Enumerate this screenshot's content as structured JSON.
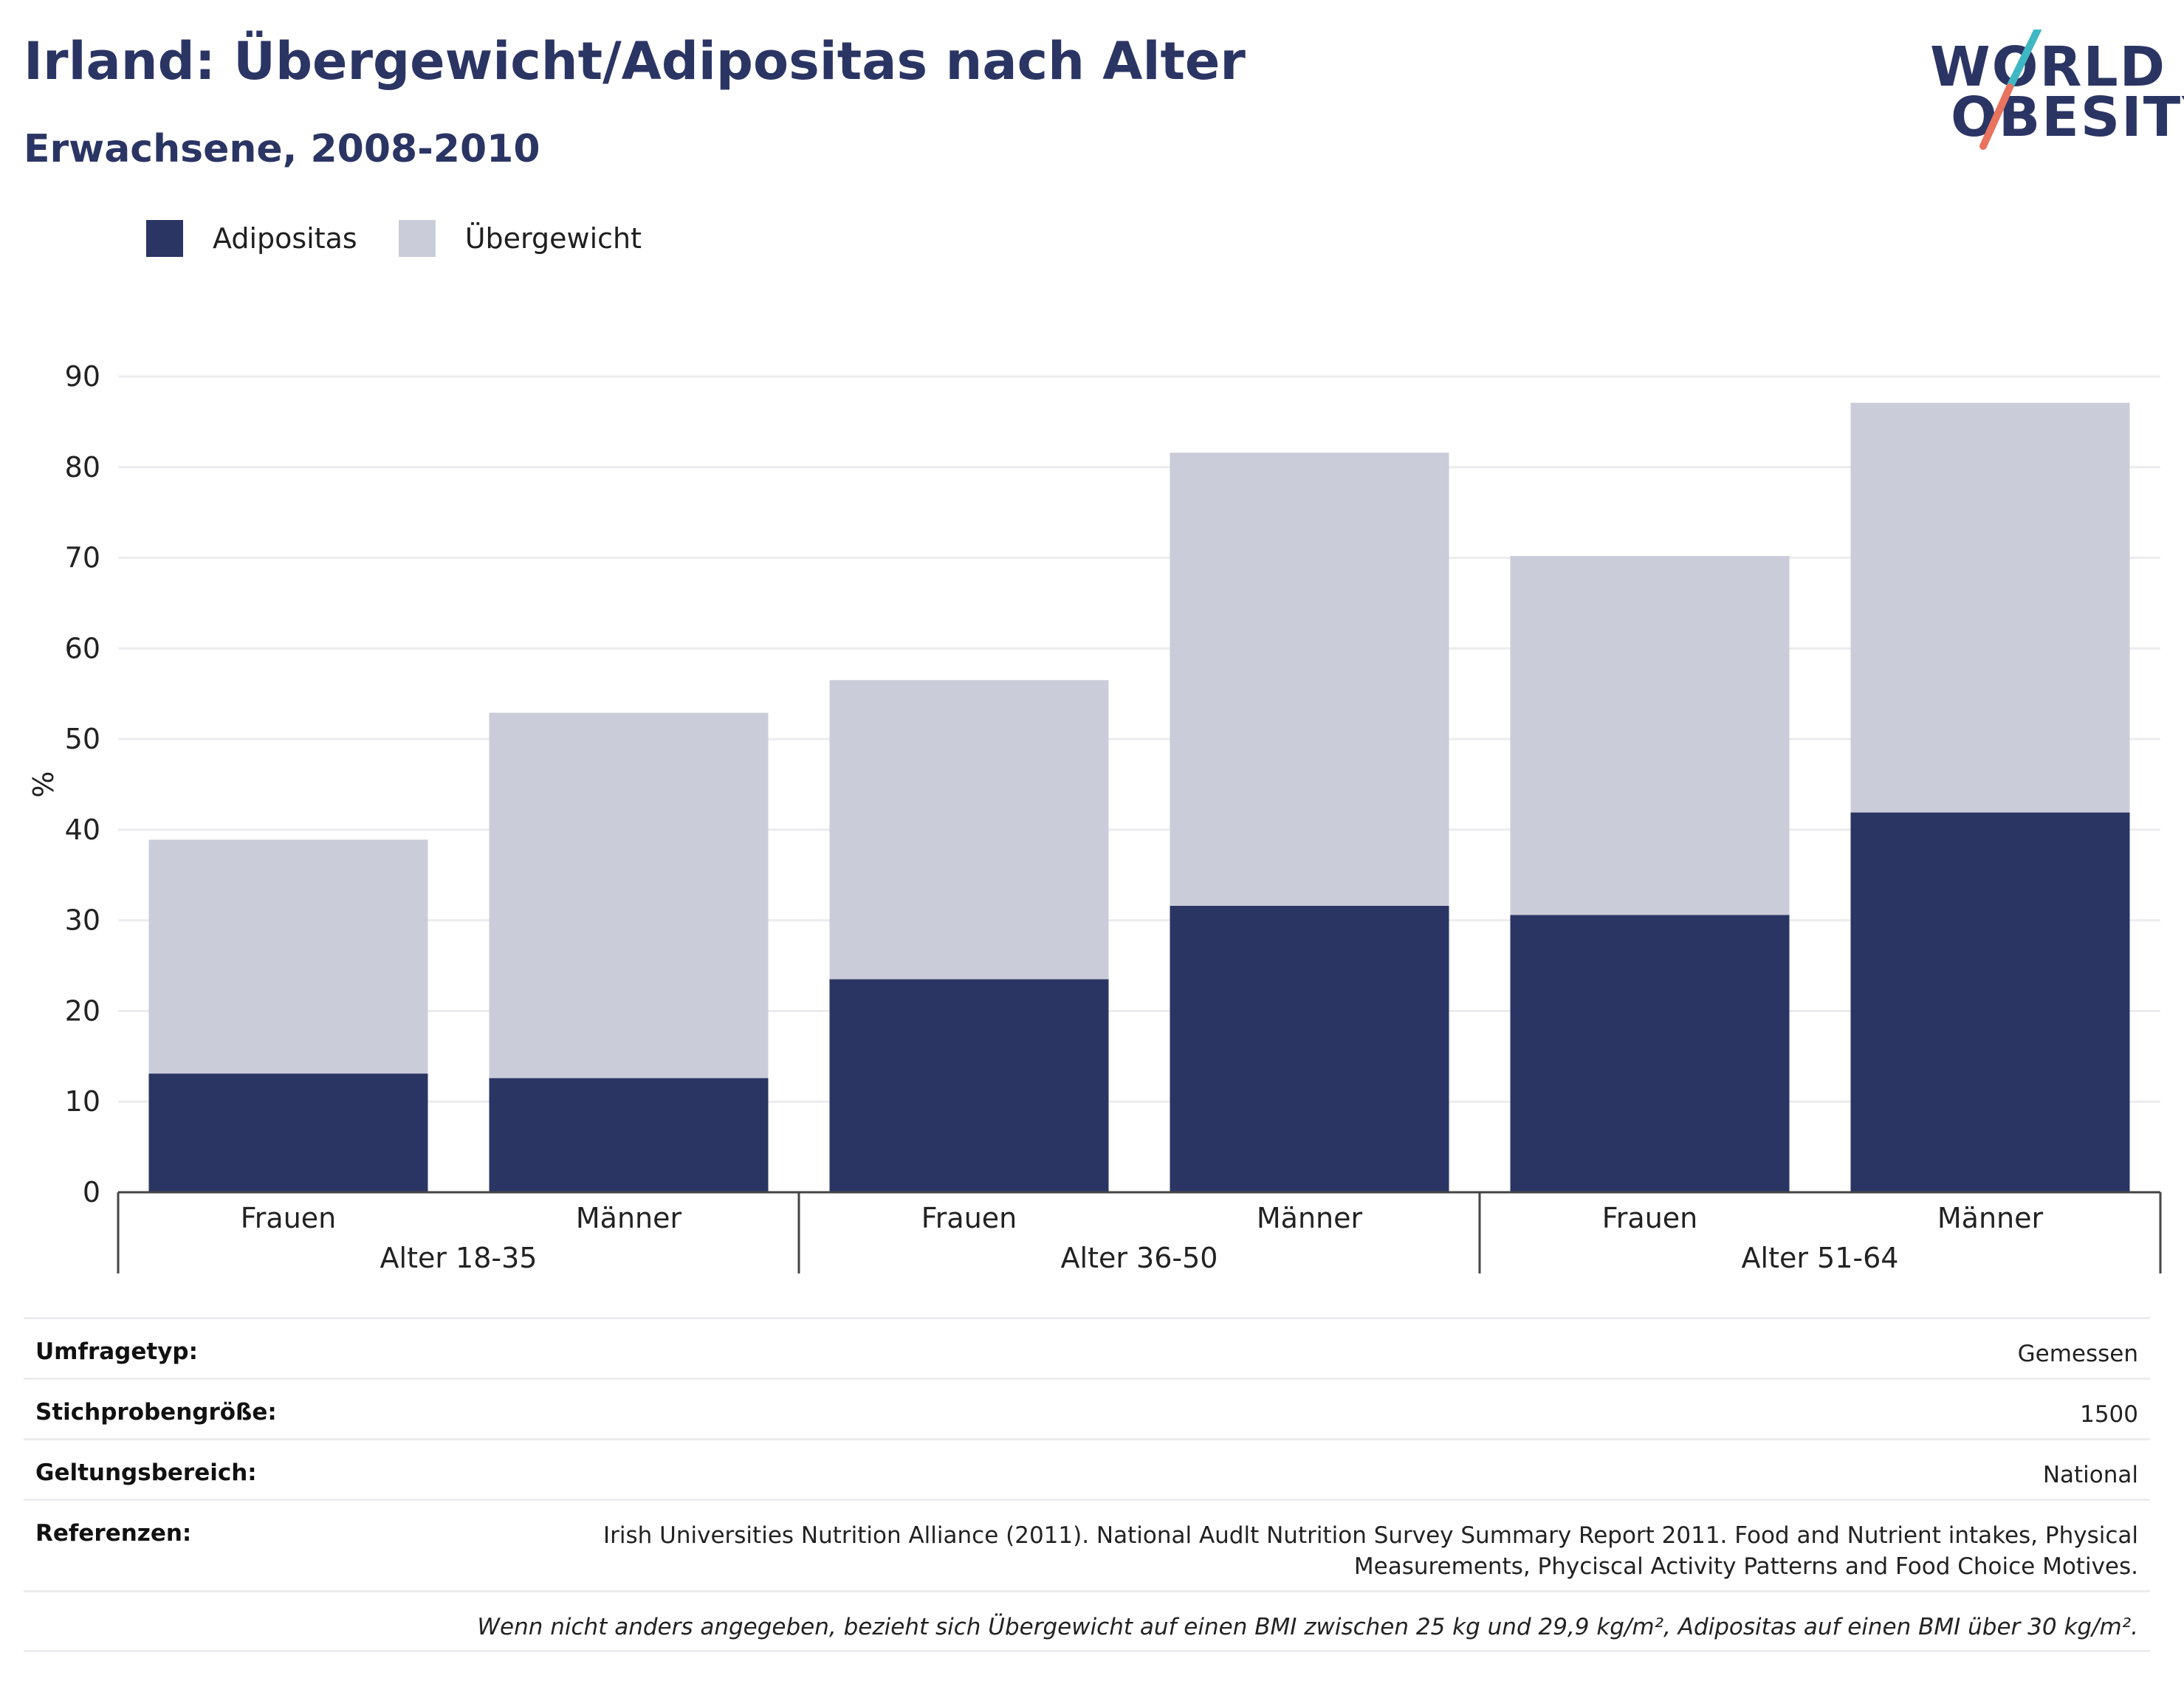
{
  "header": {
    "title": "Irland: Übergewicht/Adipositas nach Alter",
    "subtitle": "Erwachsene, 2008-2010"
  },
  "logo": {
    "line1": "WORLD",
    "line2": "OBESITY",
    "colors": {
      "text": "#2b3564",
      "slash_top": "#3fb8c4",
      "slash_bottom": "#e8735f"
    }
  },
  "legend": [
    {
      "label": "Adipositas",
      "color": "#2b3564"
    },
    {
      "label": "Übergewicht",
      "color": "#cacdd9"
    }
  ],
  "chart_data": {
    "type": "bar",
    "stacked": true,
    "ylabel": "%",
    "ylim": [
      0,
      90
    ],
    "yticks": [
      0,
      10,
      20,
      30,
      40,
      50,
      60,
      70,
      80,
      90
    ],
    "grid": true,
    "legend_position": "top-left",
    "categories": [
      "Frauen",
      "Männer",
      "Frauen",
      "Männer",
      "Frauen",
      "Männer"
    ],
    "groups": [
      "Alter 18-35",
      "Alter 36-50",
      "Alter 51-64"
    ],
    "series": [
      {
        "name": "Adipositas",
        "color": "#2b3564",
        "values": [
          13.1,
          12.6,
          23.5,
          31.6,
          30.6,
          41.9
        ]
      },
      {
        "name": "Übergewicht",
        "color": "#cacdd9",
        "values": [
          25.8,
          40.3,
          33.0,
          50.0,
          39.6,
          45.2
        ]
      }
    ]
  },
  "meta": {
    "rows": [
      {
        "label": "Umfragetyp:",
        "value": "Gemessen"
      },
      {
        "label": "Stichprobengröße:",
        "value": "1500"
      },
      {
        "label": "Geltungsbereich:",
        "value": "National"
      },
      {
        "label": "Referenzen:",
        "value": "Irish Universities Nutrition Alliance (2011). National Audlt Nutrition Survey Summary Report 2011. Food and Nutrient intakes, Physical Measurements, Phyciscal Activity Patterns and Food Choice Motives."
      }
    ],
    "footnote": "Wenn nicht anders angegeben, bezieht sich Übergewicht auf einen BMI zwischen 25 kg und 29,9 kg/m², Adipositas auf einen BMI über 30 kg/m²."
  }
}
